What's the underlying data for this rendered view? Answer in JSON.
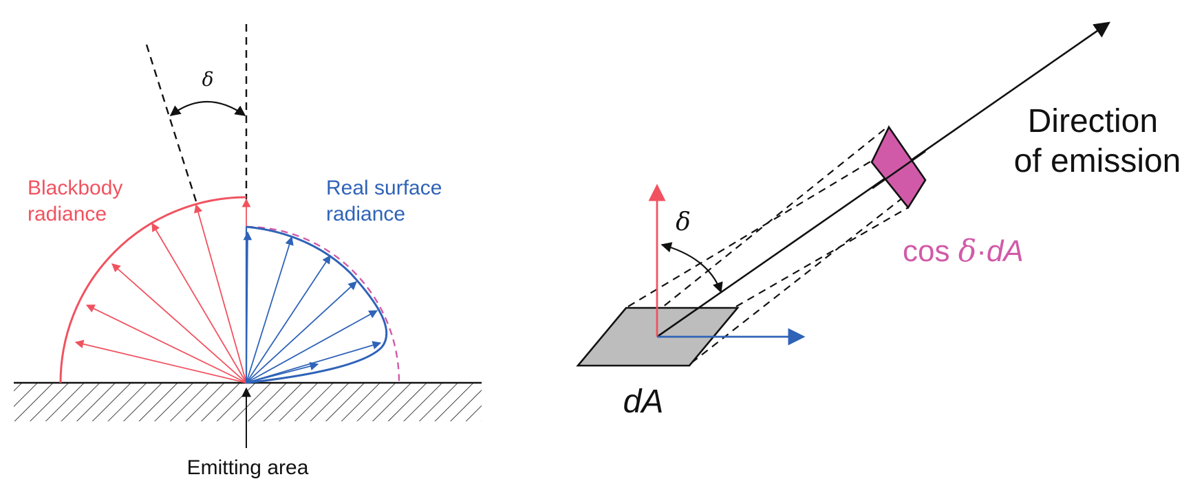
{
  "colors": {
    "blackbody": "#f0525f",
    "real_surface": "#2f63b8",
    "magenta": "#d15aa8",
    "ink": "#111111",
    "surface_patch": "#bdbdbd"
  },
  "left_diagram": {
    "angle_symbol": "δ",
    "blackbody_label": [
      "Blackbody",
      "radiance"
    ],
    "real_surface_label": [
      "Real surface",
      "radiance"
    ],
    "emitting_area_label": "Emitting area"
  },
  "right_diagram": {
    "angle_symbol": "δ",
    "direction_label": [
      "Direction",
      "of emission"
    ],
    "projected_area_label": {
      "prefix": "cos ",
      "symbol": "δ",
      "suffix": "·",
      "var": "dA"
    },
    "area_label": "dA"
  }
}
